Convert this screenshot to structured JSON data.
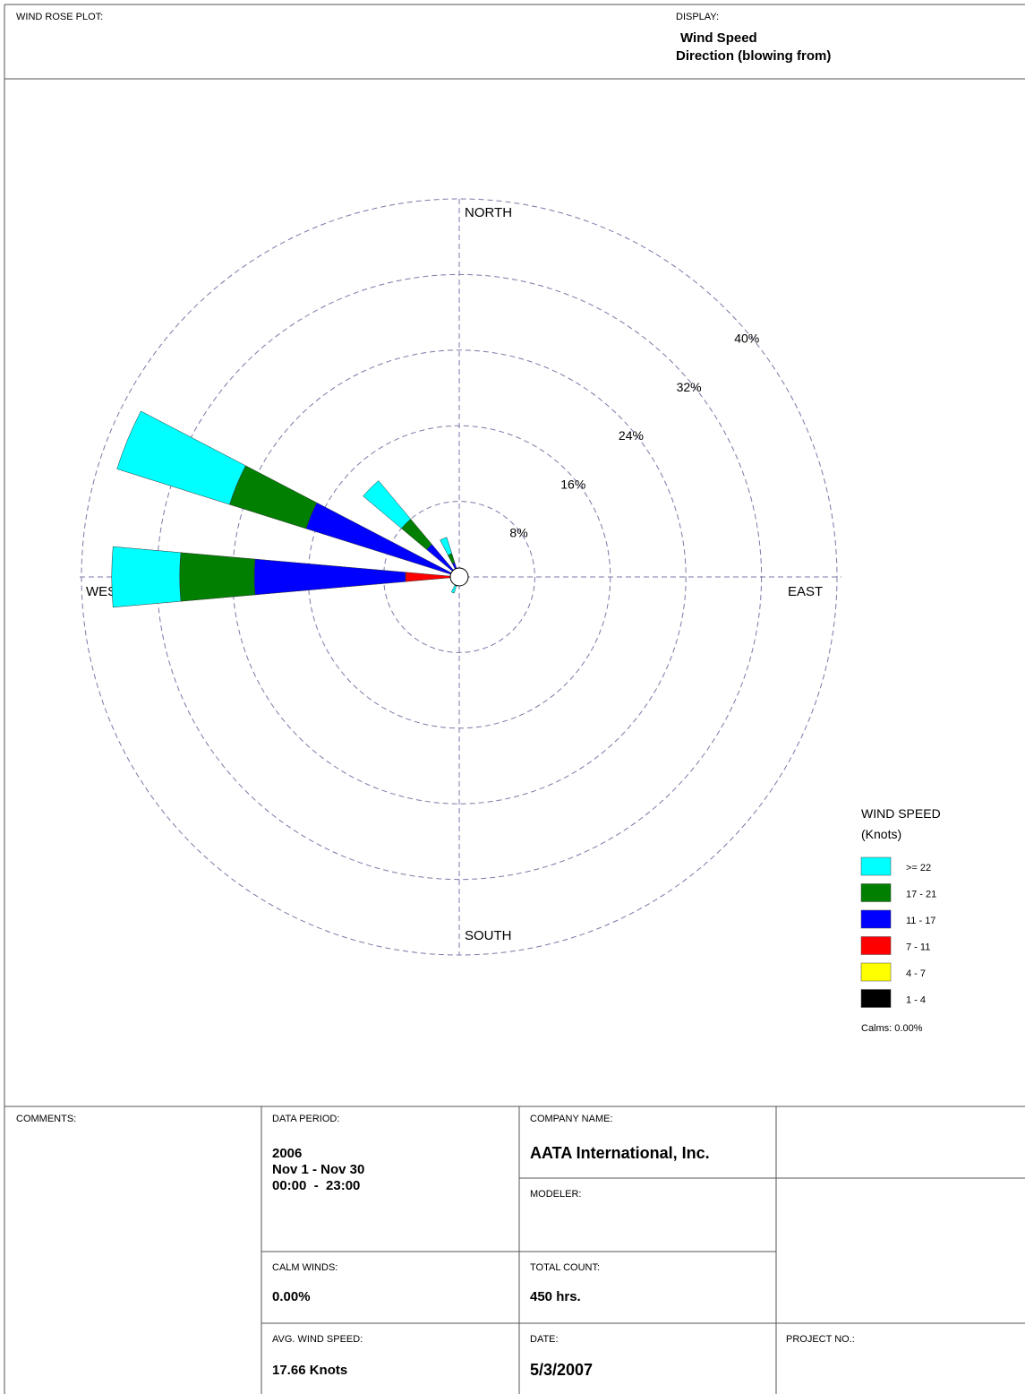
{
  "header": {
    "title": "WIND ROSE PLOT:",
    "display_label": "DISPLAY:",
    "display_lines": [
      "Wind Speed",
      "Direction (blowing from)"
    ]
  },
  "chart_data": {
    "type": "windrose",
    "categories": [
      null,
      null,
      null,
      null,
      null,
      null,
      null,
      null,
      null,
      null,
      null,
      null,
      null,
      null,
      null,
      null
    ],
    "direction_labels": {
      "north": "NORTH",
      "east": "EAST",
      "south": "SOUTH",
      "west": "WEST"
    },
    "ylim": [
      0,
      40
    ],
    "yticks": [
      {
        "value": 8,
        "label": "8%"
      },
      {
        "value": 16,
        "label": "16%"
      },
      {
        "value": 24,
        "label": "24%"
      },
      {
        "value": 32,
        "label": "32%"
      },
      {
        "value": 40,
        "label": "40%"
      }
    ],
    "grid": true,
    "legend_title": [
      "WIND SPEED",
      "(Knots)"
    ],
    "calms_label": "Calms: 0.00%",
    "series": [
      {
        "name": "1 - 4",
        "color": "#000000",
        "values": [
          0,
          0,
          0,
          0,
          0,
          0,
          0,
          0,
          0,
          0,
          0,
          0,
          0.3,
          0,
          0,
          0
        ]
      },
      {
        "name": "4 - 7",
        "color": "#ffff00",
        "values": [
          0,
          0,
          0,
          0,
          0,
          0,
          0,
          0,
          0,
          0,
          0,
          0,
          0.5,
          0.2,
          0.2,
          0.1
        ]
      },
      {
        "name": "7 - 11",
        "color": "#ff0000",
        "values": [
          0,
          0,
          0,
          0,
          0,
          0,
          0,
          0,
          0.2,
          0.2,
          0.2,
          0,
          4.9,
          0.8,
          0.5,
          0.3
        ]
      },
      {
        "name": "11 - 17",
        "color": "#0000ff",
        "values": [
          0,
          0,
          0,
          0,
          0,
          0,
          0,
          0,
          0.4,
          0.5,
          0.5,
          0,
          16,
          16,
          3.8,
          1.2
        ]
      },
      {
        "name": "17 - 21",
        "color": "#007f00",
        "values": [
          0,
          0,
          0,
          0,
          0,
          0,
          0,
          0,
          0,
          0.3,
          0,
          0,
          7.9,
          8.5,
          3.5,
          1.0
        ]
      },
      {
        "name": ">= 22",
        "color": "#00ffff",
        "values": [
          0,
          0,
          0,
          0,
          0,
          0,
          0,
          0,
          0,
          0.8,
          0,
          0,
          7.2,
          12.5,
          5.3,
          1.8
        ]
      }
    ]
  },
  "footer": {
    "comments_label": "COMMENTS:",
    "data_period_label": "DATA PERIOD:",
    "data_period_lines": [
      "2006",
      "Nov 1 - Nov 30",
      "00:00  -  23:00"
    ],
    "company_label": "COMPANY NAME:",
    "company_name": "AATA International, Inc.",
    "modeler_label": "MODELER:",
    "calm_winds_label": "CALM WINDS:",
    "calm_winds": "0.00%",
    "total_count_label": "TOTAL COUNT:",
    "total_count": "450 hrs.",
    "avg_label": "AVG. WIND SPEED:",
    "avg": "17.66 Knots",
    "date_label": "DATE:",
    "date": "5/3/2007",
    "project_label": "PROJECT NO.:"
  }
}
